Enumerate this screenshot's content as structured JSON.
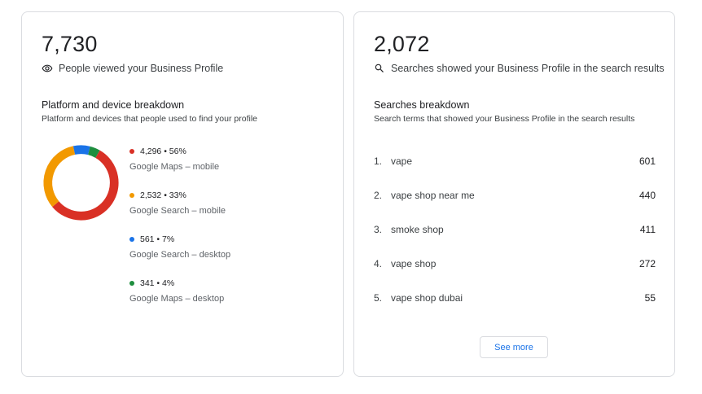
{
  "views": {
    "total": "7,730",
    "label": "People viewed your Business Profile",
    "icon": "eye-icon",
    "breakdown_title": "Platform and device breakdown",
    "breakdown_subtitle": "Platform and devices that people used to find your profile",
    "platforms": [
      {
        "stat": "4,296 • 56%",
        "label": "Google Maps – mobile",
        "color": "#d93025",
        "value": 4296,
        "percent": 56
      },
      {
        "stat": "2,532 • 33%",
        "label": "Google Search – mobile",
        "color": "#f29900",
        "value": 2532,
        "percent": 33
      },
      {
        "stat": "561 • 7%",
        "label": "Google Search – desktop",
        "color": "#1a73e8",
        "value": 561,
        "percent": 7
      },
      {
        "stat": "341 • 4%",
        "label": "Google Maps – desktop",
        "color": "#1e8e3e",
        "value": 341,
        "percent": 4
      }
    ]
  },
  "searches": {
    "total": "2,072",
    "label": "Searches showed your Business Profile in the search results",
    "icon": "search-icon",
    "breakdown_title": "Searches breakdown",
    "breakdown_subtitle": "Search terms that showed your Business Profile in the search results",
    "terms": [
      {
        "rank": "1.",
        "term": "vape",
        "count": "601"
      },
      {
        "rank": "2.",
        "term": "vape shop near me",
        "count": "440"
      },
      {
        "rank": "3.",
        "term": "smoke shop",
        "count": "411"
      },
      {
        "rank": "4.",
        "term": "vape shop",
        "count": "272"
      },
      {
        "rank": "5.",
        "term": "vape shop dubai",
        "count": "55"
      }
    ],
    "see_more_label": "See more"
  }
}
